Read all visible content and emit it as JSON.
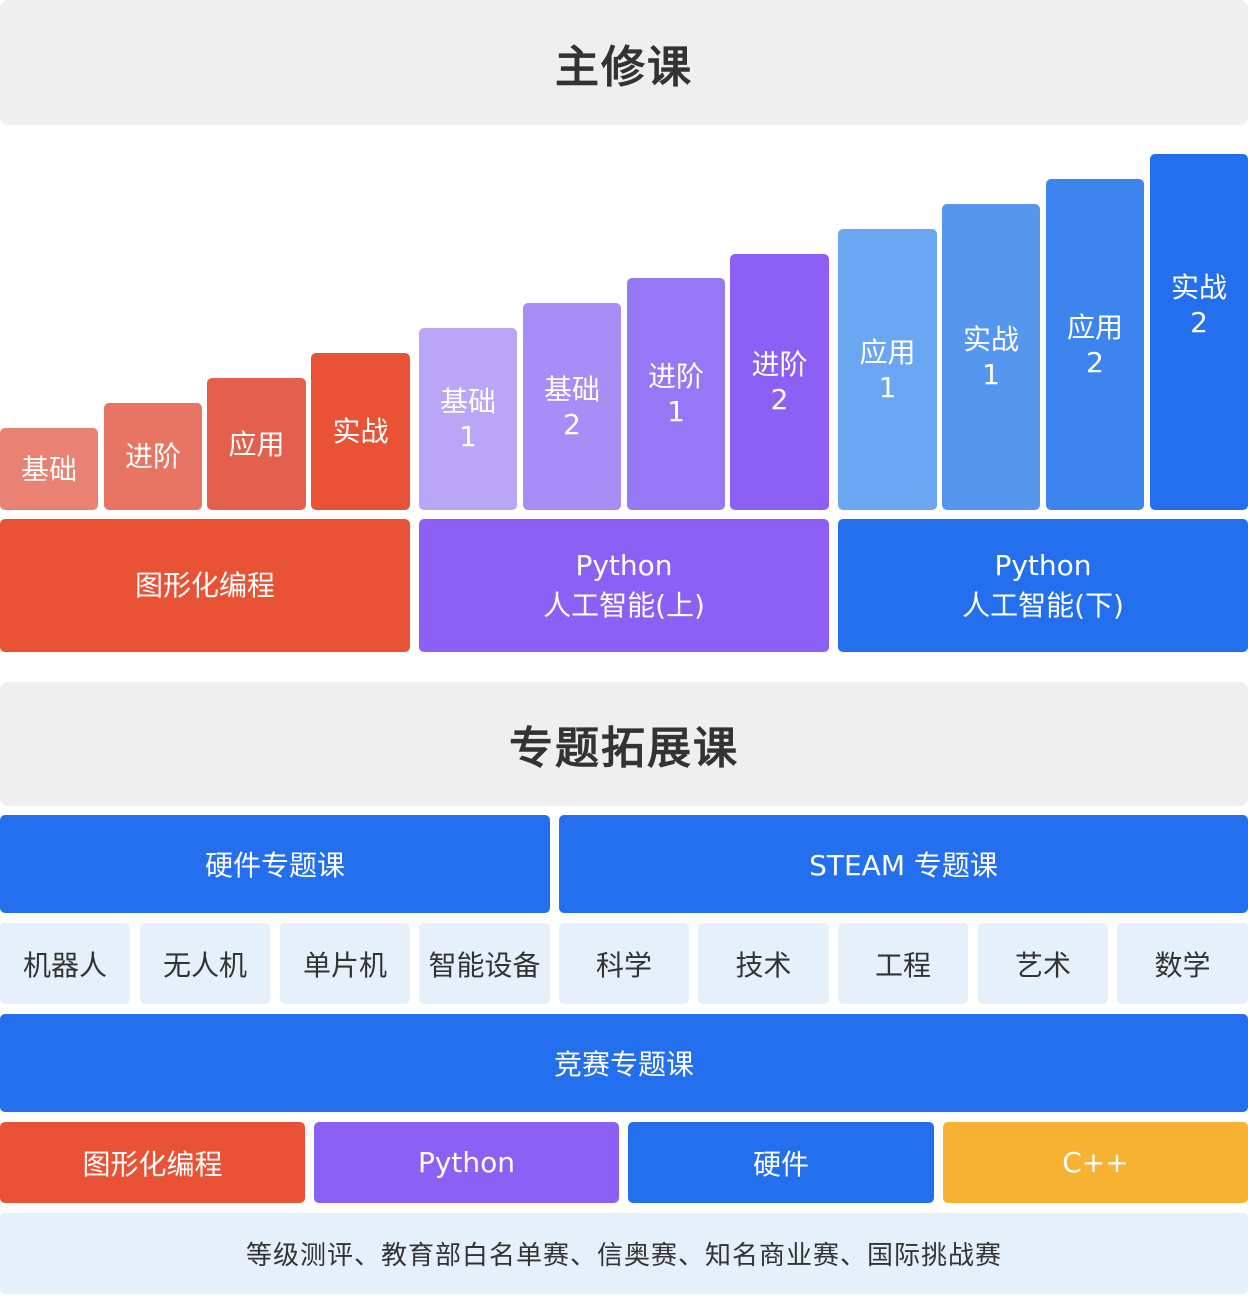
{
  "main_header": "主修课",
  "steps": [
    {
      "lines": [
        "基础"
      ],
      "color": "#e98272"
    },
    {
      "lines": [
        "进阶"
      ],
      "color": "#e87563"
    },
    {
      "lines": [
        "应用"
      ],
      "color": "#e5604c"
    },
    {
      "lines": [
        "实战"
      ],
      "color": "#e95235"
    },
    {
      "lines": [
        "基础",
        "1"
      ],
      "color": "#b9a6f7"
    },
    {
      "lines": [
        "基础",
        "2"
      ],
      "color": "#a78df6"
    },
    {
      "lines": [
        "进阶",
        "1"
      ],
      "color": "#9677f5"
    },
    {
      "lines": [
        "进阶",
        "2"
      ],
      "color": "#8c5ff5"
    },
    {
      "lines": [
        "应用",
        "1"
      ],
      "color": "#6aa6f2"
    },
    {
      "lines": [
        "实战",
        "1"
      ],
      "color": "#5596ef"
    },
    {
      "lines": [
        "应用",
        "2"
      ],
      "color": "#3d84ee"
    },
    {
      "lines": [
        "实战",
        "2"
      ],
      "color": "#236fed"
    }
  ],
  "bands": [
    {
      "lines": [
        "图形化编程"
      ],
      "color": "#e95235"
    },
    {
      "lines": [
        "Python",
        "人工智能(上)"
      ],
      "color": "#8c5ff5"
    },
    {
      "lines": [
        "Python",
        "人工智能(下)"
      ],
      "color": "#236fed"
    }
  ],
  "extension_header": "专题拓展课",
  "hardware_course": {
    "label": "硬件专题课",
    "items": [
      "机器人",
      "无人机",
      "单片机",
      "智能设备"
    ]
  },
  "steam_course": {
    "label": "STEAM 专题课",
    "items": [
      "科学",
      "技术",
      "工程",
      "艺术",
      "数学"
    ]
  },
  "competition_course": {
    "label": "竞赛专题课",
    "tracks": [
      {
        "label": "图形化编程",
        "color": "#e95235"
      },
      {
        "label": "Python",
        "color": "#8c5ff5"
      },
      {
        "label": "硬件",
        "color": "#236fed"
      },
      {
        "label": "C++",
        "color": "#f7b133"
      }
    ],
    "events": "等级测评、教育部白名单赛、信奥赛、知名商业赛、国际挑战赛"
  },
  "colors": {
    "blue": "#236fed",
    "header_bg": "#efefef",
    "cell_bg": "#e6f0fa"
  }
}
